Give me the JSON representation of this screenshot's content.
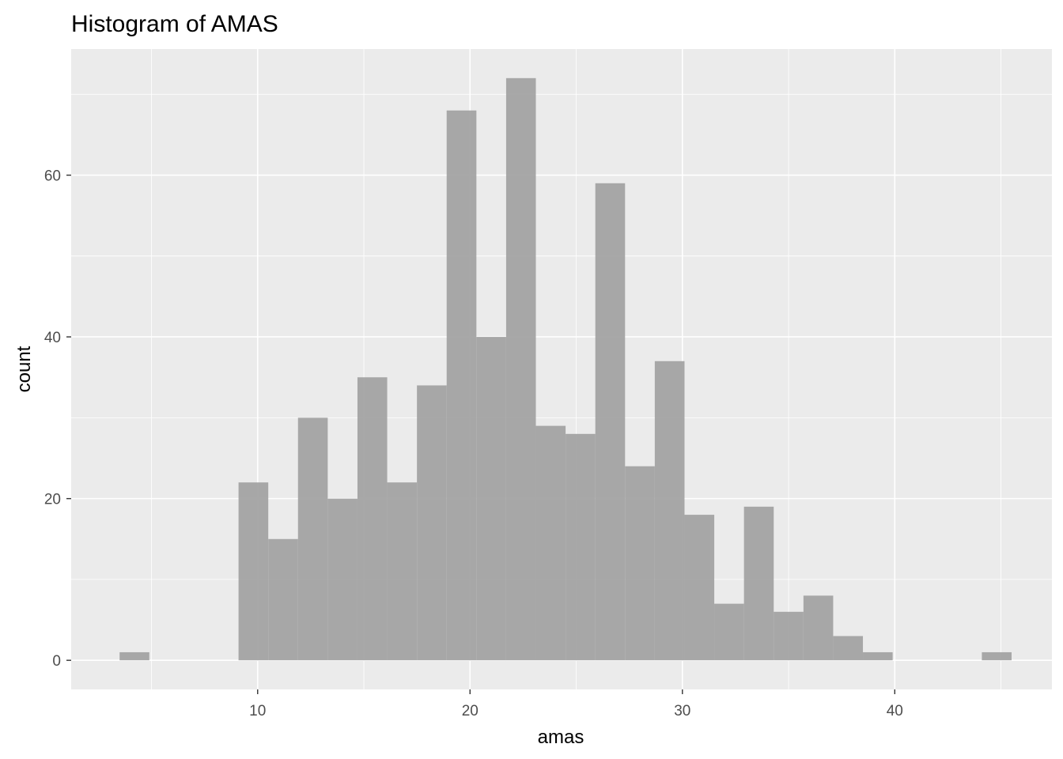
{
  "chart_data": {
    "type": "bar",
    "title": "Histogram of AMAS",
    "xlabel": "amas",
    "ylabel": "count",
    "xlim": [
      1.22,
      47.4
    ],
    "ylim": [
      -3.6,
      75.6
    ],
    "x_ticks": [
      10,
      20,
      30,
      40
    ],
    "y_ticks": [
      0,
      20,
      40,
      60
    ],
    "bin_width": 1.4,
    "bin_starts": [
      3.5,
      4.9,
      6.3,
      7.7,
      9.1,
      10.5,
      11.9,
      13.3,
      14.7,
      16.1,
      17.5,
      18.9,
      20.3,
      21.7,
      23.1,
      24.5,
      25.9,
      27.3,
      28.7,
      30.1,
      31.5,
      32.9,
      34.3,
      35.7,
      37.1,
      38.5,
      39.9,
      41.3,
      42.7,
      44.1
    ],
    "values": [
      1,
      0,
      0,
      0,
      22,
      15,
      30,
      20,
      35,
      22,
      34,
      68,
      40,
      72,
      29,
      28,
      59,
      24,
      37,
      18,
      7,
      19,
      6,
      8,
      3,
      1,
      0,
      0,
      0,
      1
    ],
    "grid": true,
    "colors": {
      "panel": "#ebebeb",
      "grid_major": "#ffffff",
      "bar_fill": "#a3a3a3"
    }
  }
}
